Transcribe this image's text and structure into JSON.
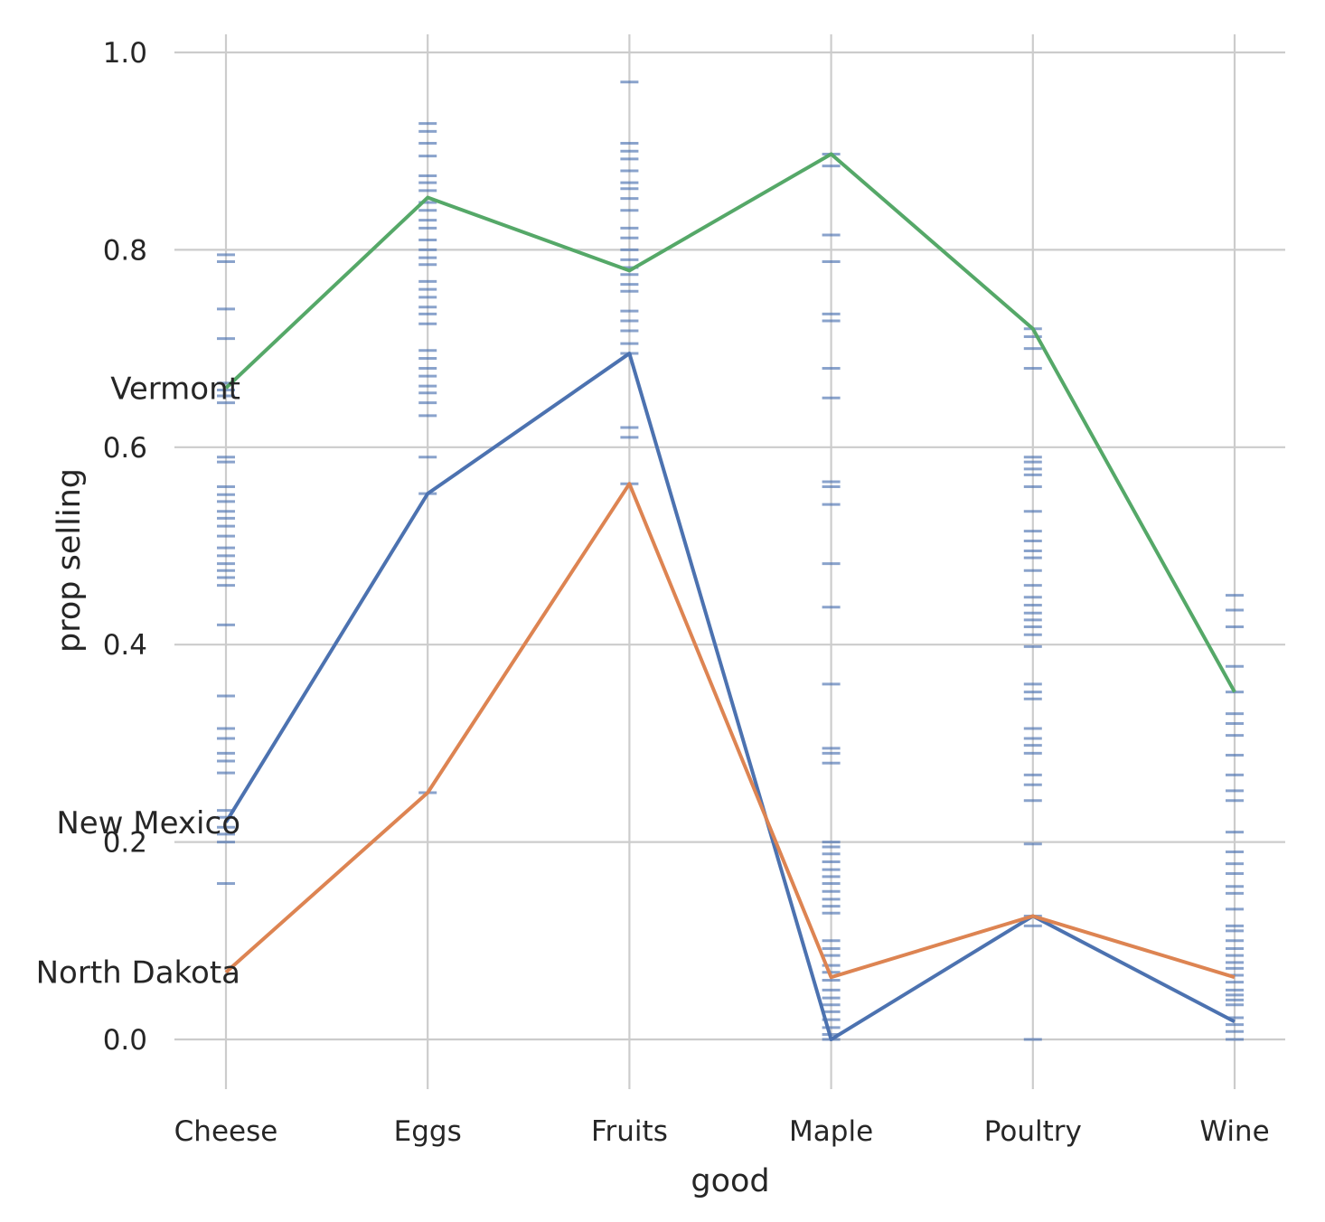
{
  "chart_data": {
    "type": "line",
    "xlabel": "good",
    "ylabel": "prop selling",
    "categories": [
      "Cheese",
      "Eggs",
      "Fruits",
      "Maple",
      "Poultry",
      "Wine"
    ],
    "ylim": [
      -0.05,
      1.02
    ],
    "yticks": [
      "0.0",
      "0.2",
      "0.4",
      "0.6",
      "0.8",
      "1.0"
    ],
    "grid": true,
    "series": [
      {
        "name": "Vermont",
        "color": "#55a868",
        "values": [
          0.66,
          0.853,
          0.779,
          0.897,
          0.72,
          0.352
        ]
      },
      {
        "name": "New Mexico",
        "color": "#4c72b0",
        "values": [
          0.22,
          0.553,
          0.695,
          0.0,
          0.125,
          0.018
        ]
      },
      {
        "name": "North Dakota",
        "color": "#dd8452",
        "values": [
          0.068,
          0.25,
          0.563,
          0.063,
          0.125,
          0.063
        ]
      }
    ],
    "rug": {
      "color": "#4c72b0",
      "values": [
        [
          0.795,
          0.788,
          0.74,
          0.71,
          0.665,
          0.658,
          0.652,
          0.645,
          0.59,
          0.585,
          0.56,
          0.552,
          0.545,
          0.535,
          0.528,
          0.52,
          0.51,
          0.498,
          0.49,
          0.482,
          0.475,
          0.468,
          0.46,
          0.42,
          0.348,
          0.315,
          0.305,
          0.29,
          0.282,
          0.27,
          0.232,
          0.225,
          0.215,
          0.208,
          0.2,
          0.158
        ],
        [
          0.928,
          0.92,
          0.908,
          0.895,
          0.875,
          0.868,
          0.86,
          0.848,
          0.84,
          0.83,
          0.822,
          0.81,
          0.8,
          0.792,
          0.785,
          0.768,
          0.76,
          0.752,
          0.742,
          0.735,
          0.725,
          0.698,
          0.69,
          0.68,
          0.672,
          0.662,
          0.655,
          0.645,
          0.632,
          0.59,
          0.553,
          0.25
        ],
        [
          0.97,
          0.908,
          0.9,
          0.892,
          0.88,
          0.868,
          0.862,
          0.852,
          0.84,
          0.822,
          0.812,
          0.8,
          0.79,
          0.782,
          0.775,
          0.765,
          0.758,
          0.738,
          0.728,
          0.718,
          0.705,
          0.695,
          0.62,
          0.61,
          0.563
        ],
        [
          0.897,
          0.885,
          0.815,
          0.788,
          0.735,
          0.728,
          0.68,
          0.65,
          0.565,
          0.56,
          0.542,
          0.482,
          0.438,
          0.36,
          0.295,
          0.29,
          0.28,
          0.2,
          0.195,
          0.188,
          0.18,
          0.172,
          0.165,
          0.158,
          0.15,
          0.142,
          0.135,
          0.128,
          0.1,
          0.092,
          0.085,
          0.075,
          0.068,
          0.06,
          0.05,
          0.042,
          0.035,
          0.028,
          0.02,
          0.012,
          0.005,
          0.0
        ],
        [
          0.72,
          0.712,
          0.7,
          0.68,
          0.59,
          0.585,
          0.578,
          0.572,
          0.56,
          0.535,
          0.515,
          0.505,
          0.495,
          0.488,
          0.475,
          0.46,
          0.448,
          0.44,
          0.432,
          0.425,
          0.418,
          0.41,
          0.398,
          0.36,
          0.352,
          0.345,
          0.315,
          0.305,
          0.298,
          0.29,
          0.268,
          0.258,
          0.242,
          0.198,
          0.125,
          0.115,
          0.0
        ],
        [
          0.45,
          0.435,
          0.418,
          0.378,
          0.352,
          0.33,
          0.32,
          0.308,
          0.288,
          0.268,
          0.252,
          0.242,
          0.21,
          0.19,
          0.178,
          0.168,
          0.155,
          0.148,
          0.132,
          0.115,
          0.11,
          0.1,
          0.092,
          0.085,
          0.078,
          0.072,
          0.065,
          0.058,
          0.05,
          0.045,
          0.04,
          0.035,
          0.022,
          0.015,
          0.008,
          0.0
        ]
      ]
    }
  }
}
